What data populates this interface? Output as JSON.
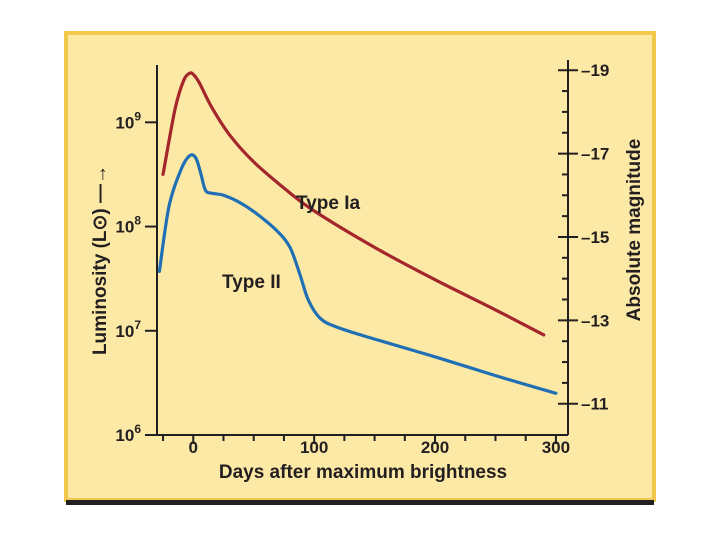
{
  "colors": {
    "background": "#fde9a6",
    "frame": "#f2c94c",
    "type_ia": "#a4262c",
    "type_ii": "#1f6fb5",
    "axis": "#231f20"
  },
  "chart_data": {
    "type": "line",
    "title": "",
    "xlabel": "Days after maximum brightness",
    "ylabel_left": "Luminosity (L⊙) —→",
    "ylabel_right": "Absolute magnitude",
    "xlim": [
      -30,
      310
    ],
    "y_log10_lim": [
      6,
      9.55
    ],
    "x_ticks": [
      0,
      100,
      200,
      300
    ],
    "x_tick_labels": [
      "0",
      "100",
      "200",
      "300"
    ],
    "x_minor_ticks": [
      -25,
      25,
      50,
      75,
      125,
      150,
      175,
      225,
      250,
      275
    ],
    "left_ticks": [
      {
        "base": "10",
        "exp": "6",
        "log": 6
      },
      {
        "base": "10",
        "exp": "7",
        "log": 7
      },
      {
        "base": "10",
        "exp": "8",
        "log": 8
      },
      {
        "base": "10",
        "exp": "9",
        "log": 9
      }
    ],
    "right_ticks": [
      {
        "label": "–19",
        "mag": -19
      },
      {
        "label": "–17",
        "mag": -17
      },
      {
        "label": "–15",
        "mag": -15
      },
      {
        "label": "–13",
        "mag": -13
      },
      {
        "label": "–11",
        "mag": -11
      }
    ],
    "right_minor_ticks": [
      -18.5,
      -18,
      -17.5,
      -16.5,
      -16,
      -15.5,
      -14.5,
      -14,
      -13.5,
      -12.5,
      -12,
      -11.5
    ],
    "mag_to_log": {
      "mag_ref": -19,
      "log_ref": 9.5,
      "log_per_mag": -0.4
    },
    "series": [
      {
        "name": "Type Ia",
        "label": "Type Ia",
        "x": [
          -25,
          -15,
          -8,
          -3,
          0,
          5,
          15,
          30,
          50,
          75,
          100,
          150,
          200,
          250,
          290
        ],
        "log": [
          8.5,
          9.13,
          9.4,
          9.47,
          9.46,
          9.38,
          9.15,
          8.88,
          8.62,
          8.37,
          8.15,
          7.8,
          7.49,
          7.2,
          6.96
        ]
      },
      {
        "name": "Type II",
        "label": "Type II",
        "x": [
          -28,
          -20,
          -10,
          -3,
          2,
          6,
          10,
          15,
          25,
          40,
          55,
          70,
          80,
          88,
          95,
          105,
          120,
          150,
          200,
          250,
          300
        ],
        "log": [
          7.57,
          8.2,
          8.55,
          8.68,
          8.66,
          8.52,
          8.35,
          8.32,
          8.3,
          8.22,
          8.1,
          7.95,
          7.8,
          7.55,
          7.3,
          7.12,
          7.03,
          6.92,
          6.75,
          6.57,
          6.4
        ]
      }
    ]
  }
}
